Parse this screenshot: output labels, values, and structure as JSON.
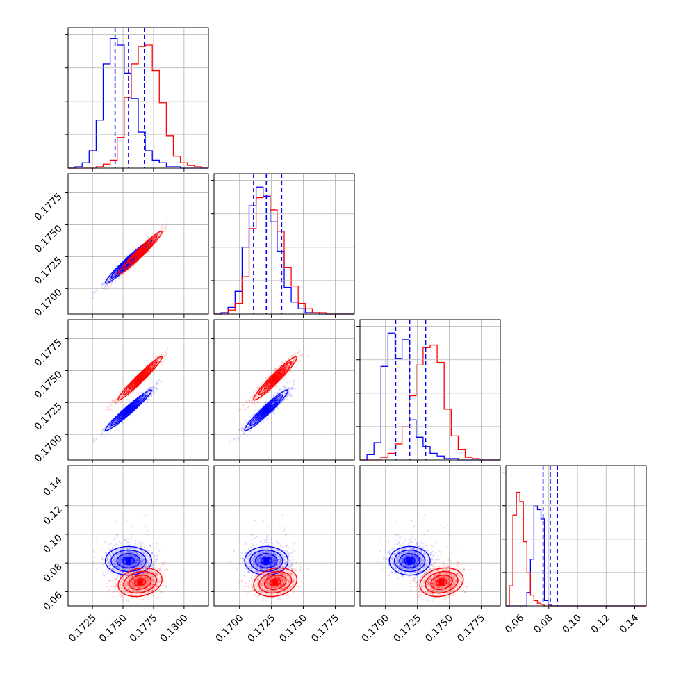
{
  "chart_data": {
    "type": "corner",
    "grid": true,
    "series": [
      {
        "color": "#0000ff"
      },
      {
        "color": "#ff0000"
      }
    ],
    "axes": [
      {
        "range": [
          0.1705,
          0.182
        ],
        "ticks": [
          "0.1725",
          "0.1750",
          "0.1775",
          "0.1800"
        ],
        "tickvals": [
          0.1725,
          0.175,
          0.1775,
          0.18
        ]
      },
      {
        "range": [
          0.168,
          0.179
        ],
        "ticks": [
          "0.1700",
          "0.1725",
          "0.1750",
          "0.1775"
        ],
        "tickvals": [
          0.17,
          0.1725,
          0.175,
          0.1775
        ]
      },
      {
        "range": [
          0.168,
          0.179
        ],
        "ticks": [
          "0.1700",
          "0.1725",
          "0.1750",
          "0.1775"
        ],
        "tickvals": [
          0.17,
          0.1725,
          0.175,
          0.1775
        ]
      },
      {
        "range": [
          0.05,
          0.148
        ],
        "ticks": [
          "0.06",
          "0.08",
          "0.10",
          "0.12",
          "0.14"
        ],
        "tickvals": [
          0.06,
          0.08,
          0.1,
          0.12,
          0.14
        ]
      }
    ],
    "quantiles": [
      [
        0.17435,
        0.17545,
        0.17675
      ],
      [
        0.1711,
        0.1721,
        0.1733
      ],
      [
        0.1708,
        0.1719,
        0.17315
      ],
      [
        0.076,
        0.081,
        0.086
      ]
    ],
    "hist_ymax": [
      1.05,
      1.05,
      1.05,
      1.05
    ],
    "histograms": [
      {
        "bins": [
          0.1705,
          0.182,
          20
        ],
        "series": [
          [
            0,
            0.01,
            0.04,
            0.13,
            0.36,
            0.78,
            0.97,
            0.92,
            0.71,
            0.52,
            0.27,
            0.13,
            0.06,
            0.04,
            0.01,
            0.01,
            0,
            0,
            0,
            0
          ],
          [
            0,
            0,
            0,
            0,
            0.01,
            0.03,
            0.06,
            0.23,
            0.53,
            0.78,
            0.91,
            0.92,
            0.73,
            0.49,
            0.24,
            0.09,
            0.04,
            0.02,
            0.01,
            0
          ]
        ]
      },
      {
        "bins": [
          0.168,
          0.179,
          20
        ],
        "series": [
          [
            0,
            0.01,
            0.05,
            0.17,
            0.5,
            0.81,
            0.95,
            0.88,
            0.69,
            0.47,
            0.2,
            0.09,
            0.04,
            0.01,
            0.01,
            0,
            0,
            0,
            0,
            0
          ],
          [
            0,
            0,
            0.03,
            0.08,
            0.28,
            0.64,
            0.87,
            0.89,
            0.78,
            0.62,
            0.35,
            0.21,
            0.08,
            0.04,
            0.01,
            0.01,
            0,
            0,
            0,
            0
          ]
        ]
      },
      {
        "bins": [
          0.168,
          0.179,
          20
        ],
        "series": [
          [
            0,
            0.04,
            0.13,
            0.7,
            0.95,
            0.76,
            0.9,
            0.3,
            0.17,
            0.1,
            0.05,
            0.03,
            0.01,
            0.01,
            0,
            0,
            0,
            0,
            0,
            0
          ],
          [
            0,
            0,
            0,
            0.02,
            0.05,
            0.12,
            0.25,
            0.48,
            0.71,
            0.84,
            0.86,
            0.73,
            0.38,
            0.18,
            0.08,
            0.02,
            0.01,
            0,
            0,
            0
          ]
        ]
      },
      {
        "bins": [
          0.05,
          0.148,
          40
        ],
        "series": [
          [
            0,
            0,
            0,
            0,
            0,
            0,
            0.1,
            0.35,
            0.75,
            0.72,
            0.65,
            0.04,
            0.01,
            0,
            0,
            0,
            0,
            0,
            0,
            0,
            0,
            0,
            0,
            0,
            0,
            0,
            0,
            0,
            0,
            0,
            0,
            0,
            0,
            0,
            0,
            0,
            0,
            0,
            0,
            0
          ],
          [
            0,
            0.15,
            0.68,
            0.85,
            0.78,
            0.48,
            0.25,
            0.08,
            0.04,
            0.02,
            0.01,
            0,
            0,
            0,
            0,
            0,
            0,
            0,
            0,
            0,
            0,
            0,
            0,
            0,
            0,
            0,
            0,
            0,
            0,
            0,
            0,
            0,
            0,
            0,
            0,
            0,
            0,
            0,
            0,
            0
          ]
        ]
      }
    ],
    "posterior": {
      "blue": {
        "mean": [
          0.17545,
          0.1721,
          0.1719,
          0.0815
        ],
        "sd": [
          0.00095,
          0.00085,
          0.0008,
          0.005
        ],
        "corr": {
          "1-0": 0.97,
          "2-0": 0.97,
          "2-1": 0.96,
          "3-0": 0.0,
          "3-1": 0.0,
          "3-2": 0.0
        }
      },
      "red": {
        "mean": [
          0.1764,
          0.1728,
          0.1744,
          0.0665
        ],
        "sd": [
          0.0009,
          0.00085,
          0.00085,
          0.005
        ],
        "corr": {
          "1-0": 0.97,
          "2-0": 0.97,
          "2-1": 0.96,
          "3-0": 0.2,
          "3-1": 0.2,
          "3-2": 0.2
        }
      }
    }
  }
}
